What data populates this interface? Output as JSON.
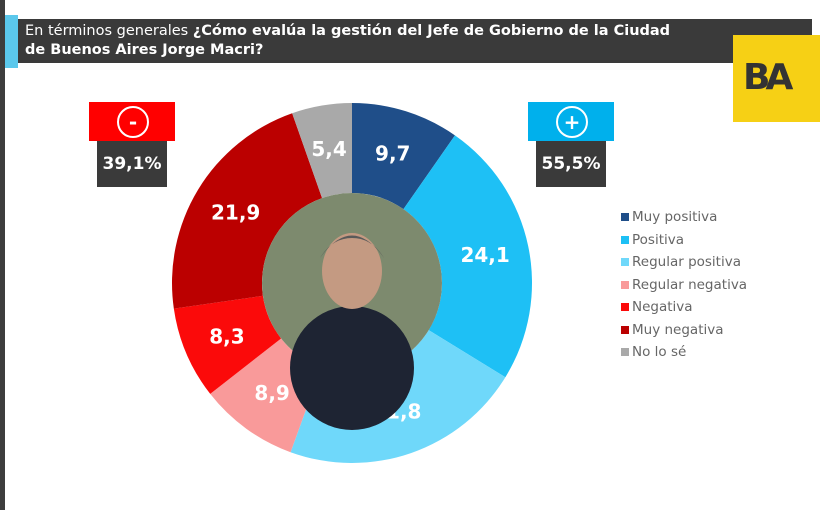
{
  "header": {
    "title_prefix": "En términos generales",
    "title_question": "¿Cómo evalúa la gestión del Jefe de Gobierno de la Ciudad de Buenos Aires Jorge Macri?"
  },
  "logo": {
    "text": "BA",
    "color": "#f6d015"
  },
  "negative_summary": {
    "symbol": "-",
    "total": "39,1%",
    "color": "#ff0000"
  },
  "positive_summary": {
    "symbol": "+",
    "total": "55,5%",
    "color": "#00b0ec"
  },
  "chart_data": {
    "type": "donut",
    "categories": [
      "Muy positiva",
      "Positiva",
      "Regular positiva",
      "Regular negativa",
      "Negativa",
      "Muy negativa",
      "No lo sé"
    ],
    "values": [
      9.7,
      24.1,
      21.8,
      8.9,
      8.3,
      21.9,
      5.4
    ],
    "labels": [
      "9,7",
      "24,1",
      "21,8",
      "8,9",
      "8,3",
      "21,9",
      "5,4"
    ],
    "colors": [
      "#1f4e89",
      "#1ec0f5",
      "#6fd8fa",
      "#f99a9a",
      "#fb0a0a",
      "#bb0000",
      "#a9a9a9"
    ],
    "legend": "right",
    "center_image": "portrait photo"
  }
}
